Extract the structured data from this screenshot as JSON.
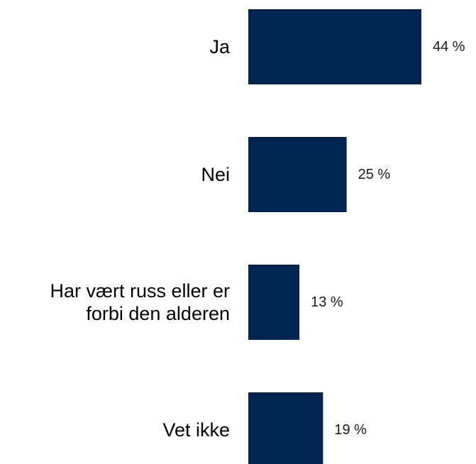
{
  "chart_data": {
    "type": "bar",
    "orientation": "horizontal",
    "categories": [
      "Ja",
      "Nei",
      "Har vært russ eller er forbi den alderen",
      "Vet ikke"
    ],
    "category_lines": [
      [
        "Ja"
      ],
      [
        "Nei"
      ],
      [
        "Har vært russ eller er",
        "forbi den alderen"
      ],
      [
        "Vet ikke"
      ]
    ],
    "values": [
      44,
      25,
      13,
      19
    ],
    "value_labels": [
      "44 %",
      "25 %",
      "13 %",
      "19 %"
    ],
    "unit": "%",
    "title": "",
    "xlabel": "",
    "ylabel": "",
    "xlim": [
      0,
      44
    ],
    "grid": false,
    "legend": "none",
    "colors": {
      "bar": "#002452"
    }
  }
}
